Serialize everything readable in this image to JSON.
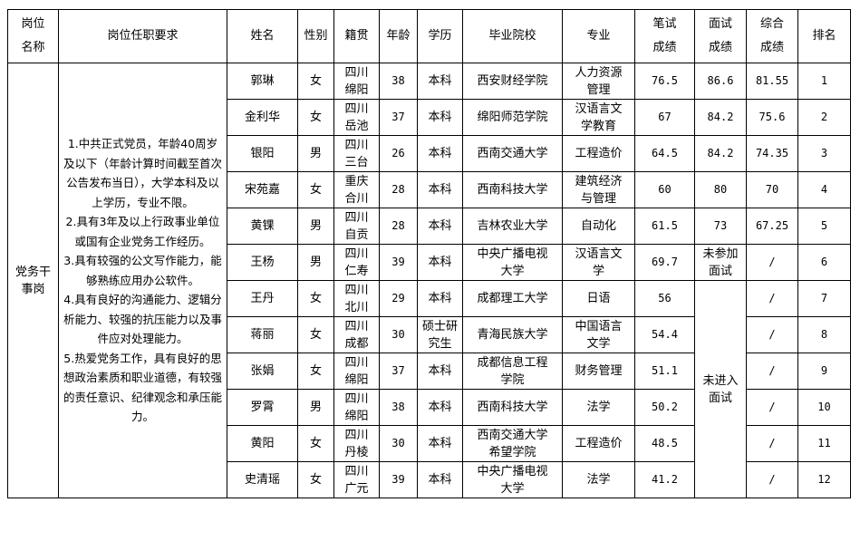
{
  "headers": [
    "岗位\n名称",
    "岗位任职要求",
    "姓名",
    "性别",
    "籍贯",
    "年龄",
    "学历",
    "毕业院校",
    "专业",
    "笔试\n成绩",
    "面试\n成绩",
    "综合\n成绩",
    "排名"
  ],
  "position": "党务干\n事岗",
  "requirements": "1.中共正式党员，年龄40周岁及以下（年龄计算时间截至首次公告发布当日），大学本科及以上学历，专业不限。\n2.具有3年及以上行政事业单位或国有企业党务工作经历。\n3.具有较强的公文写作能力，能够熟练应用办公软件。\n4.具有良好的沟通能力、逻辑分析能力、较强的抗压能力以及事件应对处理能力。\n5.热爱党务工作，具有良好的思想政治素质和职业道德，有较强的责任意识、纪律观念和承压能力。",
  "not_attended": "未参加\n面试",
  "not_advanced": "未进入\n面试",
  "rows": [
    {
      "name": "郭琳",
      "gender": "女",
      "origin": "四川\n绵阳",
      "age": "38",
      "edu": "本科",
      "school": "西安财经学院",
      "major": "人力资源\n管理",
      "written": "76.5",
      "interview": "86.6",
      "total": "81.55",
      "rank": "1"
    },
    {
      "name": "金利华",
      "gender": "女",
      "origin": "四川\n岳池",
      "age": "37",
      "edu": "本科",
      "school": "绵阳师范学院",
      "major": "汉语言文\n学教育",
      "written": "67",
      "interview": "84.2",
      "total": "75.6",
      "rank": "2"
    },
    {
      "name": "银阳",
      "gender": "男",
      "origin": "四川\n三台",
      "age": "26",
      "edu": "本科",
      "school": "西南交通大学",
      "major": "工程造价",
      "written": "64.5",
      "interview": "84.2",
      "total": "74.35",
      "rank": "3"
    },
    {
      "name": "宋苑嘉",
      "gender": "女",
      "origin": "重庆\n合川",
      "age": "28",
      "edu": "本科",
      "school": "西南科技大学",
      "major": "建筑经济\n与管理",
      "written": "60",
      "interview": "80",
      "total": "70",
      "rank": "4"
    },
    {
      "name": "黄锞",
      "gender": "男",
      "origin": "四川\n自贡",
      "age": "28",
      "edu": "本科",
      "school": "吉林农业大学",
      "major": "自动化",
      "written": "61.5",
      "interview": "73",
      "total": "67.25",
      "rank": "5"
    },
    {
      "name": "王杨",
      "gender": "男",
      "origin": "四川\n仁寿",
      "age": "39",
      "edu": "本科",
      "school": "中央广播电视\n大学",
      "major": "汉语言文\n学",
      "written": "69.7",
      "total": "/",
      "rank": "6"
    },
    {
      "name": "王丹",
      "gender": "女",
      "origin": "四川\n北川",
      "age": "29",
      "edu": "本科",
      "school": "成都理工大学",
      "major": "日语",
      "written": "56",
      "total": "/",
      "rank": "7"
    },
    {
      "name": "蒋丽",
      "gender": "女",
      "origin": "四川\n成都",
      "age": "30",
      "edu": "硕士研\n究生",
      "school": "青海民族大学",
      "major": "中国语言\n文学",
      "written": "54.4",
      "total": "/",
      "rank": "8"
    },
    {
      "name": "张娟",
      "gender": "女",
      "origin": "四川\n绵阳",
      "age": "37",
      "edu": "本科",
      "school": "成都信息工程\n学院",
      "major": "财务管理",
      "written": "51.1",
      "total": "/",
      "rank": "9"
    },
    {
      "name": "罗霄",
      "gender": "男",
      "origin": "四川\n绵阳",
      "age": "38",
      "edu": "本科",
      "school": "西南科技大学",
      "major": "法学",
      "written": "50.2",
      "total": "/",
      "rank": "10"
    },
    {
      "name": "黄阳",
      "gender": "女",
      "origin": "四川\n丹棱",
      "age": "30",
      "edu": "本科",
      "school": "西南交通大学\n希望学院",
      "major": "工程造价",
      "written": "48.5",
      "total": "/",
      "rank": "11"
    },
    {
      "name": "史清瑶",
      "gender": "女",
      "origin": "四川\n广元",
      "age": "39",
      "edu": "本科",
      "school": "中央广播电视\n大学",
      "major": "法学",
      "written": "41.2",
      "total": "/",
      "rank": "12"
    }
  ]
}
